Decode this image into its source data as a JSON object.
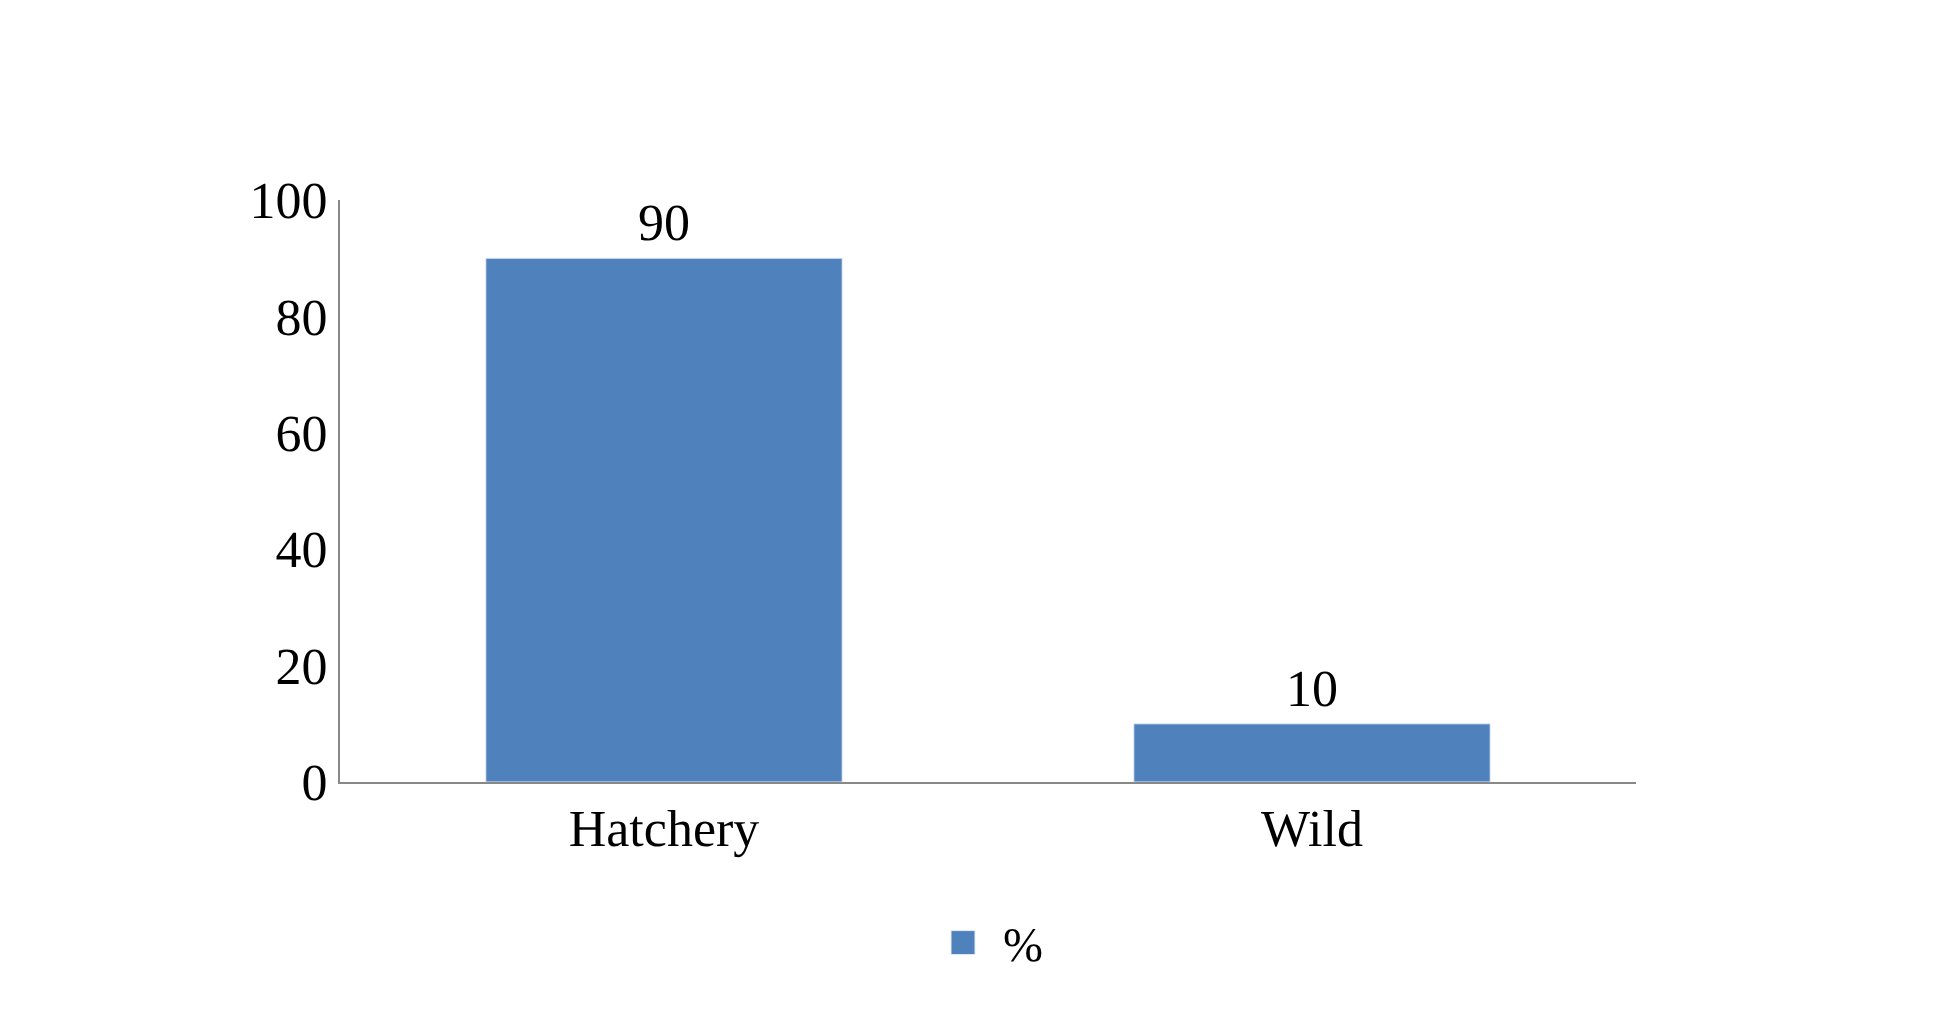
{
  "chart_data": {
    "type": "bar",
    "categories": [
      "Hatchery",
      "Wild"
    ],
    "series": [
      {
        "name": "%",
        "color": "#4f81bd",
        "values": [
          90,
          10
        ]
      }
    ],
    "ylim": [
      0,
      100
    ],
    "yticks": [
      0,
      20,
      40,
      60,
      80,
      100
    ],
    "data_labels": true,
    "legend": "bottom"
  }
}
